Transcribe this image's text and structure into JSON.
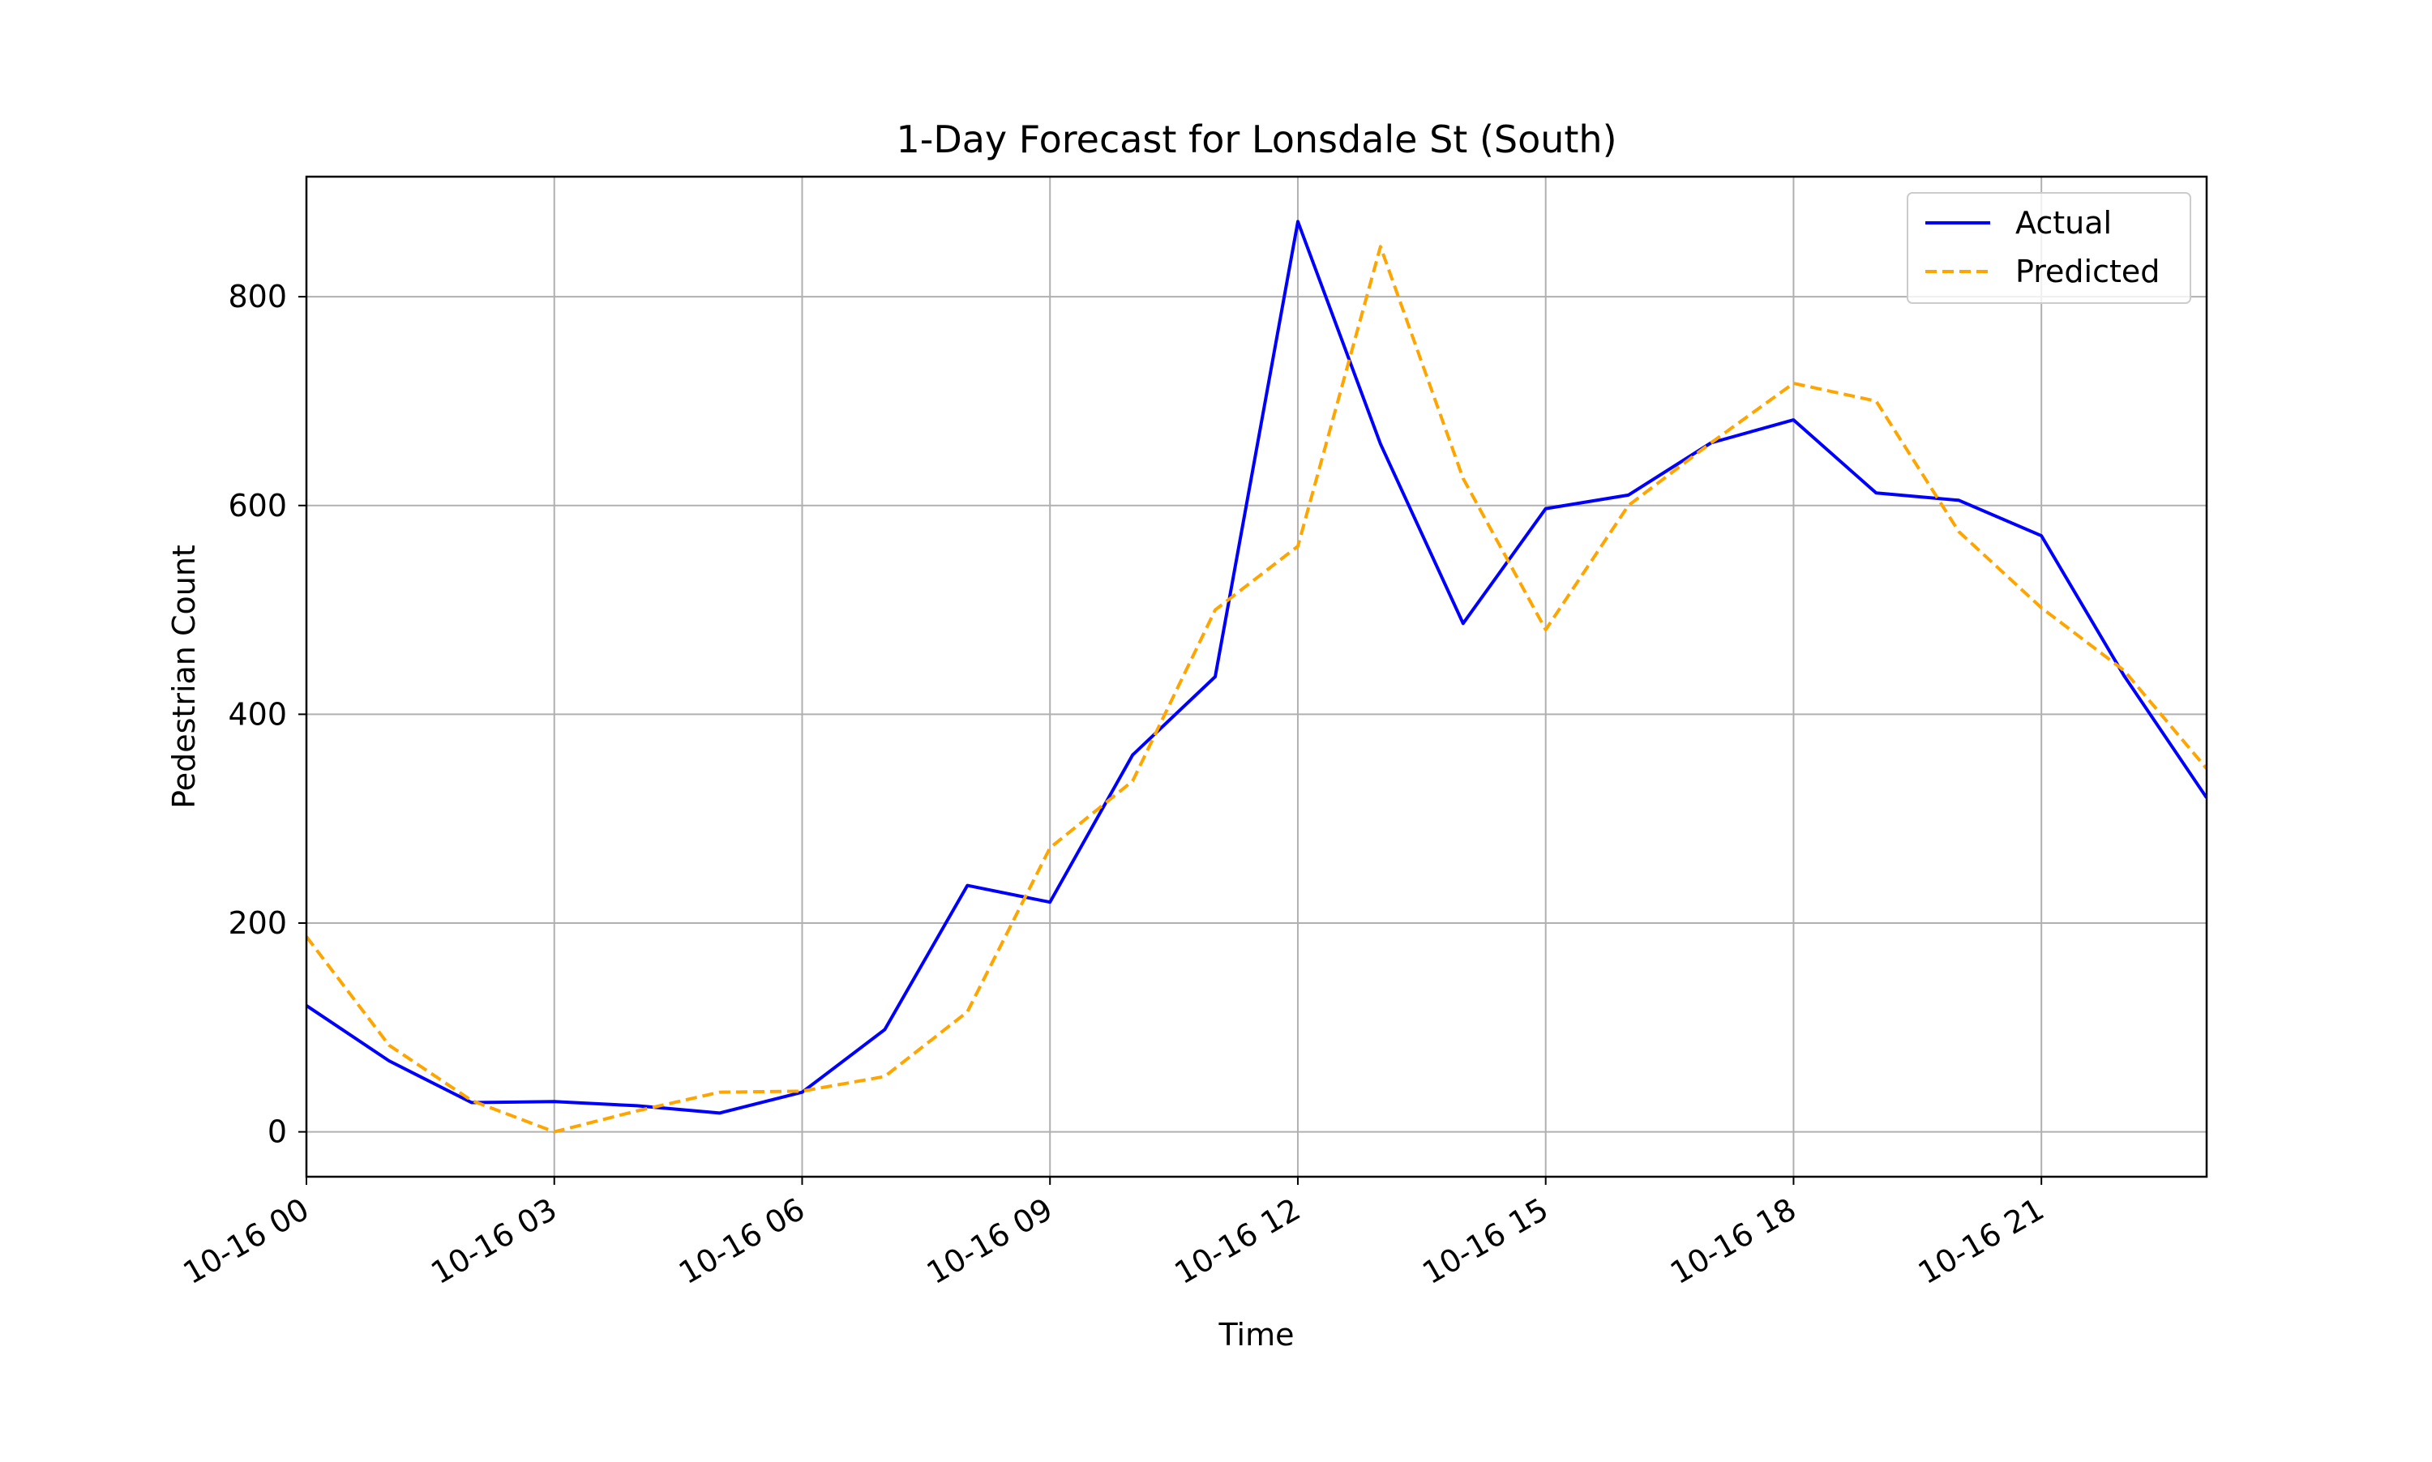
{
  "chart_data": {
    "type": "line",
    "title": "1-Day Forecast for Lonsdale St (South)",
    "xlabel": "Time",
    "ylabel": "Pedestrian Count",
    "x": [
      "2024-10-16 00:00",
      "2024-10-16 01:00",
      "2024-10-16 02:00",
      "2024-10-16 03:00",
      "2024-10-16 04:00",
      "2024-10-16 05:00",
      "2024-10-16 06:00",
      "2024-10-16 07:00",
      "2024-10-16 08:00",
      "2024-10-16 09:00",
      "2024-10-16 10:00",
      "2024-10-16 11:00",
      "2024-10-16 12:00",
      "2024-10-16 13:00",
      "2024-10-16 14:00",
      "2024-10-16 15:00",
      "2024-10-16 16:00",
      "2024-10-16 17:00",
      "2024-10-16 18:00",
      "2024-10-16 19:00",
      "2024-10-16 20:00",
      "2024-10-16 21:00",
      "2024-10-16 22:00",
      "2024-10-16 23:00"
    ],
    "xlim": [
      "2024-10-16 00:00",
      "2024-10-16 23:00"
    ],
    "ylim": [
      -43,
      915
    ],
    "xticks": [
      "2024-10-16 00:00",
      "2024-10-16 03:00",
      "2024-10-16 06:00",
      "2024-10-16 09:00",
      "2024-10-16 12:00",
      "2024-10-16 15:00",
      "2024-10-16 18:00",
      "2024-10-16 21:00"
    ],
    "xtick_labels": [
      "10-16 00",
      "10-16 03",
      "10-16 06",
      "10-16 09",
      "10-16 12",
      "10-16 15",
      "10-16 18",
      "10-16 21"
    ],
    "yticks": [
      0,
      200,
      400,
      600,
      800
    ],
    "ytick_labels": [
      "0",
      "200",
      "400",
      "600",
      "800"
    ],
    "grid": true,
    "legend": "top-right",
    "series": [
      {
        "name": "Actual",
        "color": "#0000ff",
        "style": "solid",
        "values": [
          121,
          68,
          28,
          29,
          25,
          18,
          38,
          98,
          236,
          220,
          361,
          436,
          872,
          659,
          487,
          597,
          610,
          660,
          682,
          612,
          605,
          571,
          437,
          320
        ]
      },
      {
        "name": "Predicted",
        "color": "#ffa500",
        "style": "dashed",
        "values": [
          187,
          83,
          30,
          0,
          20,
          38,
          39,
          53,
          115,
          272,
          336,
          500,
          561,
          848,
          626,
          481,
          600,
          660,
          717,
          700,
          575,
          502,
          442,
          348
        ]
      }
    ]
  }
}
